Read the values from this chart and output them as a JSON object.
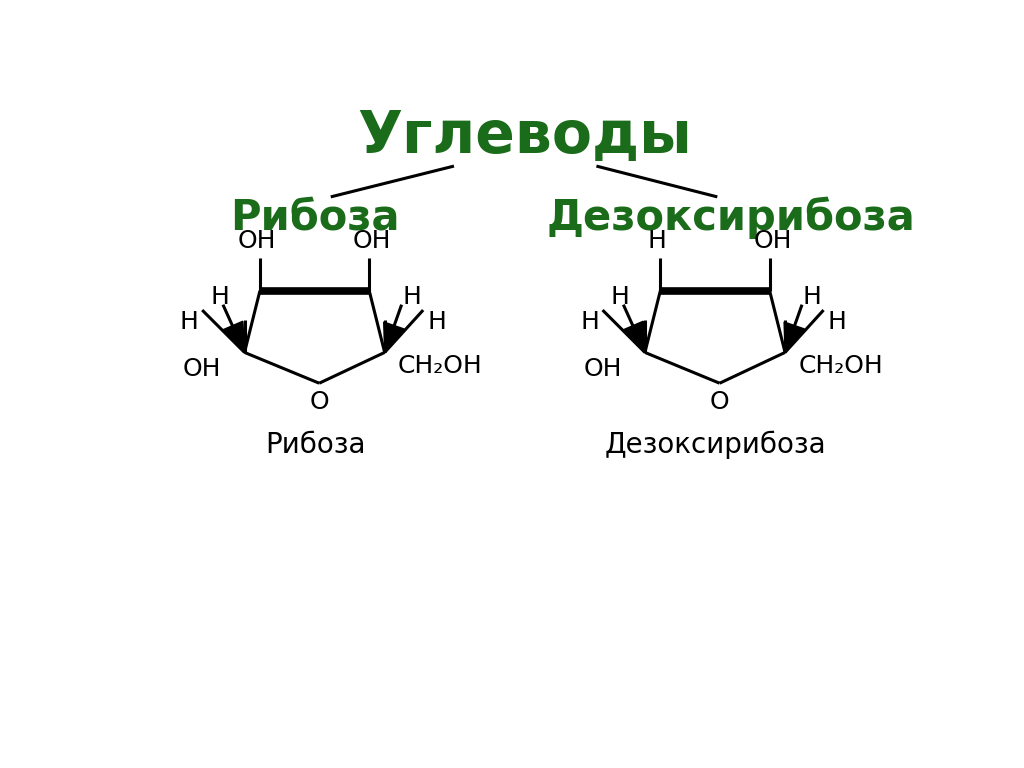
{
  "title": "Углеводы",
  "title_color": "#1a6b1a",
  "title_fontsize": 42,
  "subtitle_ribose": "Рибоза",
  "subtitle_deoxy": "Дезоксирибоза",
  "subtitle_color": "#1a6b1a",
  "subtitle_fontsize": 30,
  "label_ribose": "Рибоза",
  "label_deoxy": "Дезоксирибоза",
  "label_fontsize": 20,
  "bg_color": "#ffffff",
  "line_color": "#000000",
  "text_color": "#000000",
  "bond_lw": 2.2,
  "thick_lw": 5.5,
  "fs_chem": 18
}
